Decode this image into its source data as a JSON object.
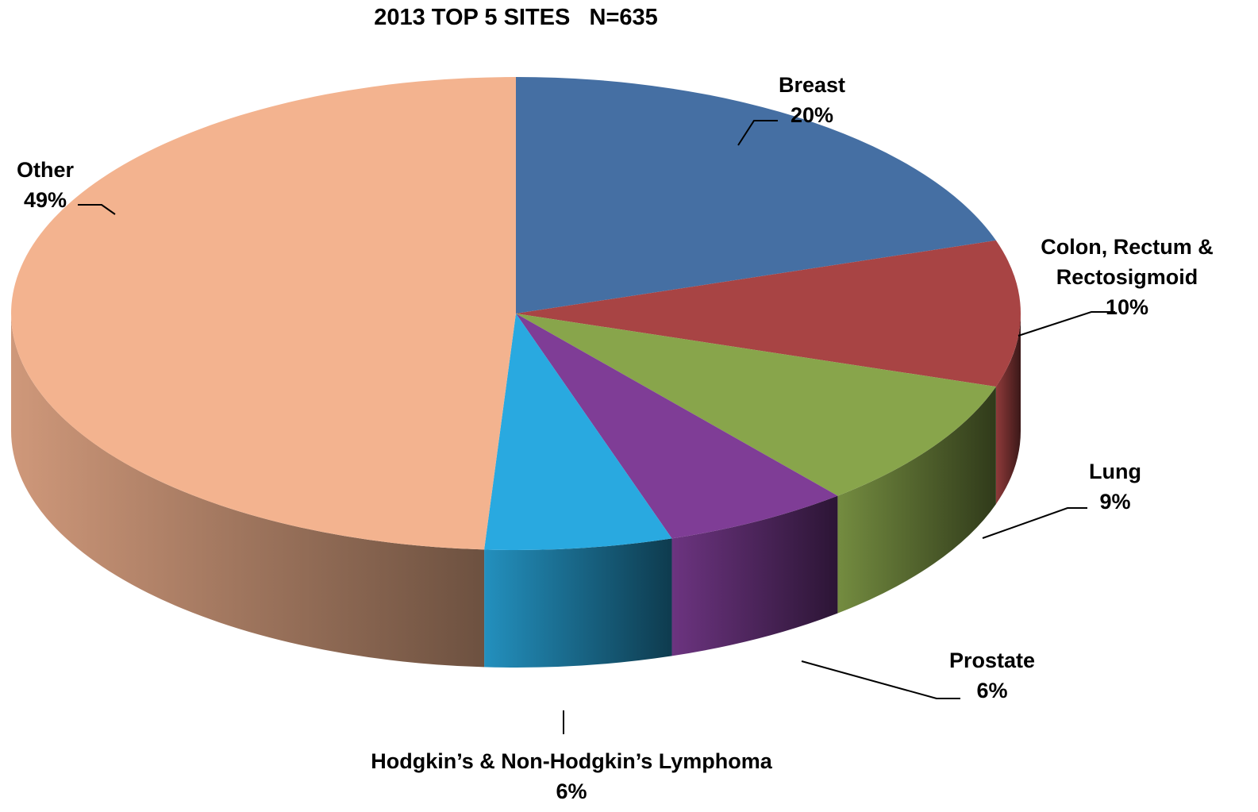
{
  "chart_data": {
    "type": "pie",
    "title": "2013 TOP 5 SITES   N=635",
    "categories": [
      "Breast",
      "Colon, Rectum & Rectosigmoid",
      "Lung",
      "Prostate",
      "Hodgkin’s & Non-Hodgkin’s Lymphoma",
      "Other"
    ],
    "values": [
      20,
      10,
      9,
      6,
      6,
      49
    ],
    "value_labels": [
      "20%",
      "10%",
      "9%",
      "6%",
      "6%",
      "49%"
    ],
    "colors": [
      "#456fa3",
      "#a84444",
      "#88a54b",
      "#7f3d96",
      "#29a9e0",
      "#f3b38f"
    ]
  }
}
